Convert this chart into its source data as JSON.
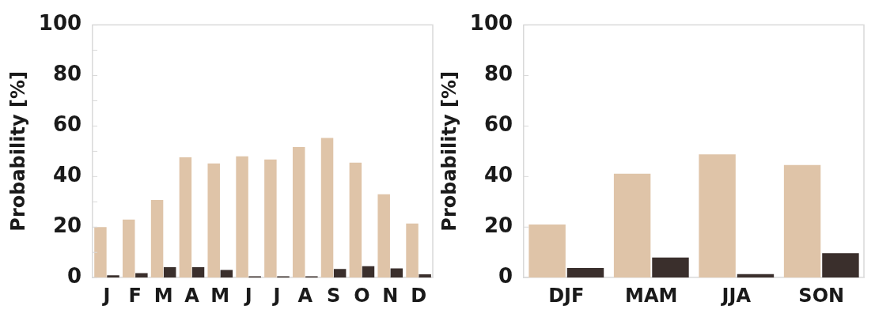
{
  "chart_data": [
    {
      "type": "bar",
      "ylabel": "Probability [%]",
      "categories": [
        "J",
        "F",
        "M",
        "A",
        "M",
        "J",
        "J",
        "A",
        "S",
        "O",
        "N",
        "D"
      ],
      "series": [
        {
          "color": "#dfc4a8",
          "values": [
            20,
            23,
            30.7,
            47.6,
            45.2,
            48,
            46.8,
            51.7,
            55.3,
            45.5,
            33,
            21.4
          ]
        },
        {
          "color": "#3a2f2c",
          "values": [
            0.9,
            1.8,
            4.1,
            4.1,
            3,
            0.5,
            0.5,
            0.5,
            3.4,
            4.5,
            3.7,
            1.3
          ]
        }
      ],
      "ylim": [
        0,
        100
      ],
      "yticks": [
        0,
        {
          "value": 10,
          "label": null
        },
        20,
        {
          "value": 30,
          "label": null
        },
        40,
        {
          "value": 50,
          "label": null
        },
        60,
        {
          "value": 70,
          "label": null
        },
        80,
        {
          "value": 90,
          "label": null
        },
        100
      ],
      "grid": false,
      "legend": false
    },
    {
      "type": "bar",
      "ylabel": "Probability [%]",
      "categories": [
        "DJF",
        "MAM",
        "JJA",
        "SON"
      ],
      "series": [
        {
          "color": "#dfc4a8",
          "values": [
            21,
            41.1,
            48.8,
            44.6
          ]
        },
        {
          "color": "#3a2f2c",
          "values": [
            3.8,
            8,
            1.4,
            9.7
          ]
        }
      ],
      "ylim": [
        0,
        100
      ],
      "yticks": [
        0,
        20,
        40,
        60,
        80,
        100
      ],
      "grid": false,
      "legend": false
    }
  ]
}
